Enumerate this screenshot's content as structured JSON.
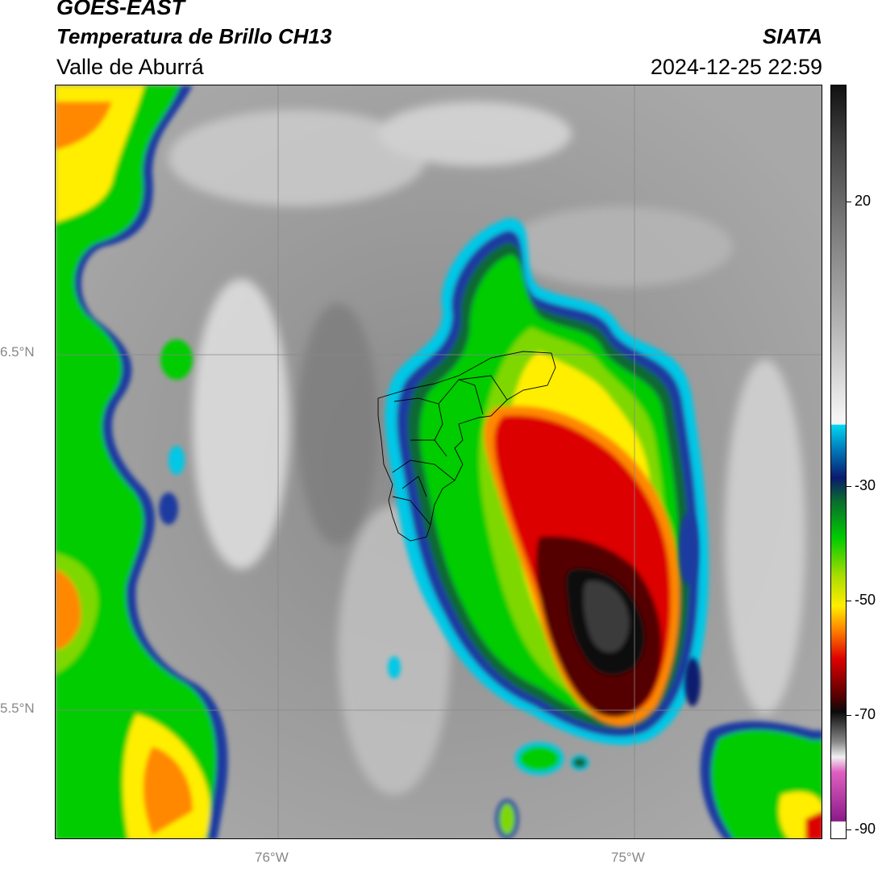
{
  "header": {
    "satellite": "GOES-EAST",
    "product": "Temperatura de Brillo CH13",
    "region": "Valle de Aburrá",
    "organization": "SIATA",
    "datetime": "2024-12-25 22:59"
  },
  "axes": {
    "lat_labels": [
      "6.5°N",
      "5.5°N"
    ],
    "lon_labels": [
      "76°W",
      "75°W"
    ]
  },
  "colorbar": {
    "ticks": [
      "20",
      "-30",
      "-50",
      "-70",
      "-90"
    ],
    "colors": {
      "warm_black": "#111111",
      "gray": "#9a9a9a",
      "white": "#f4f4f4",
      "cyan": "#00c8e6",
      "blue": "#1a3aa0",
      "dark_blue": "#0a1a6e",
      "green": "#00cc00",
      "yellow": "#ffee00",
      "orange": "#ff8800",
      "red": "#dd0000",
      "dark_red": "#550000",
      "black": "#0a0a0a",
      "pink": "#e060c0",
      "purple": "#8a1a8a"
    }
  }
}
